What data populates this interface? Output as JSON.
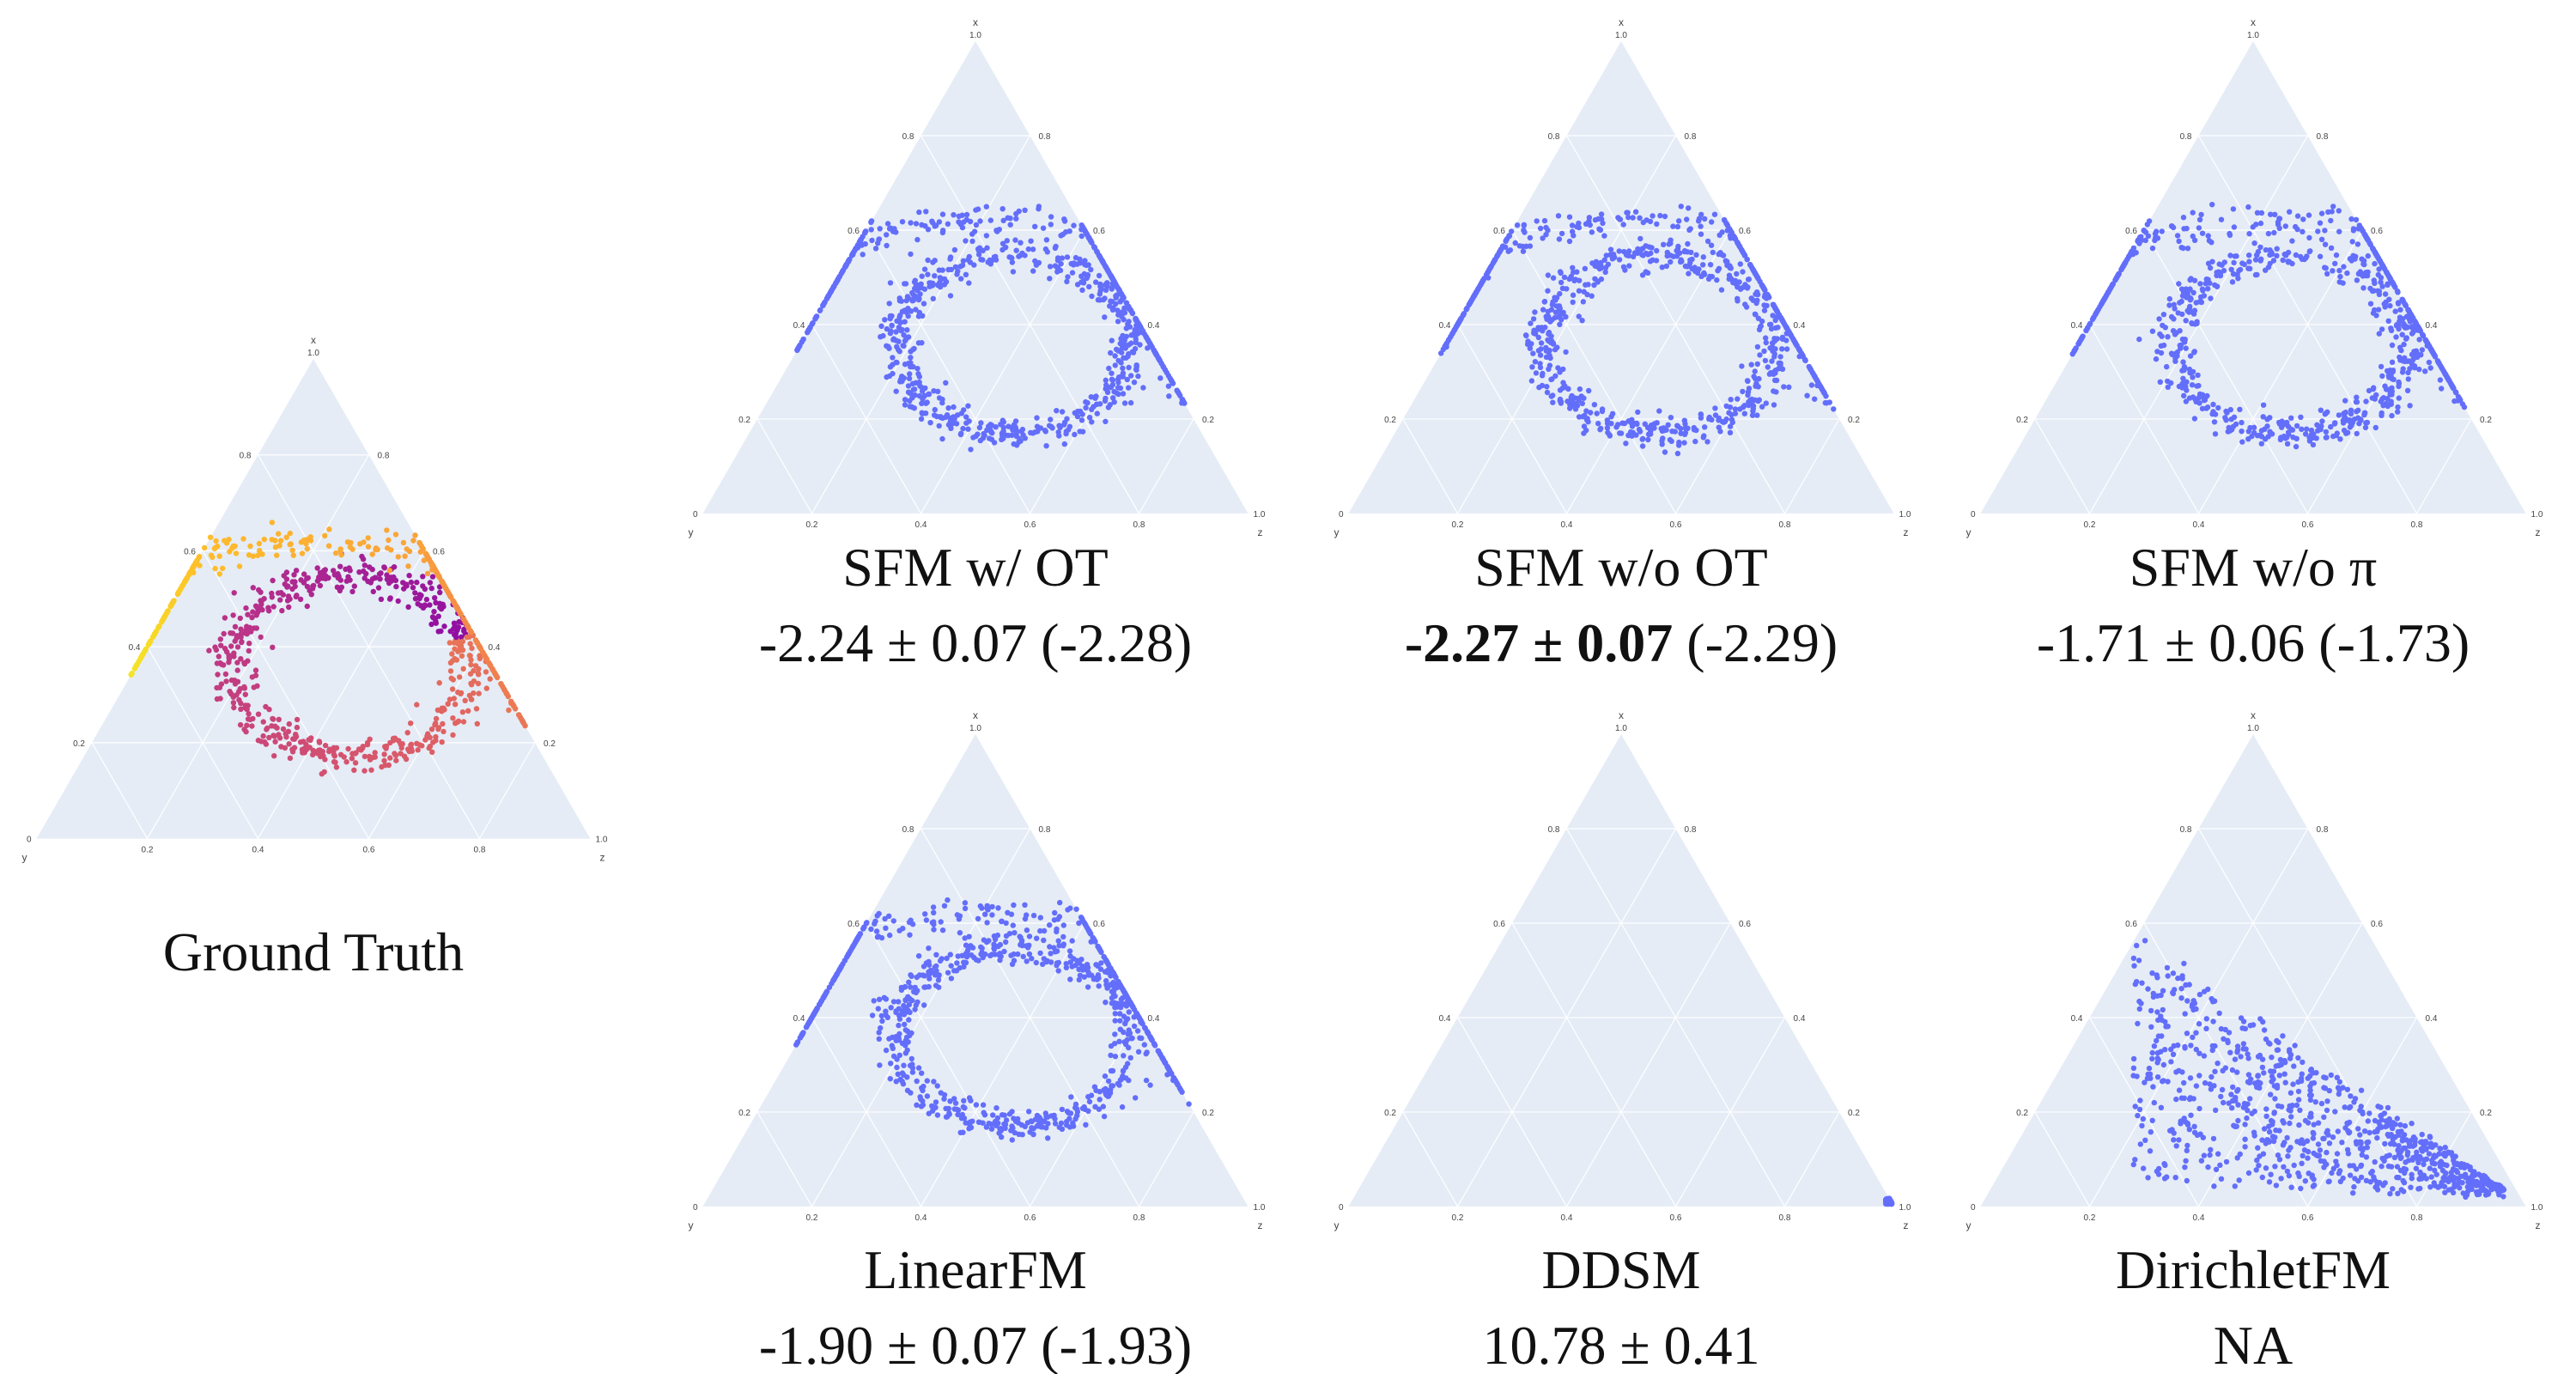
{
  "figure": {
    "axis_names": [
      "x",
      "y",
      "z"
    ],
    "bg_color": "#e5ecf6",
    "grid_color": "#ffffff",
    "marker_color": "#636efa",
    "ticks": [
      "0.2",
      "0.4",
      "0.6",
      "0.8"
    ],
    "axis_end_label": "1.0",
    "axis_zero_label": "0"
  },
  "chart_data": [
    {
      "id": "ground-truth",
      "type": "scatter-ternary",
      "title": "Ground Truth",
      "colorscale": "plasma",
      "points": "ring-plus-arc",
      "metric": null
    },
    {
      "id": "sfm-w-ot",
      "type": "scatter-ternary",
      "title": "SFM w/ OT",
      "points": "ring-plus-arc",
      "metric": {
        "mean": "-2.24",
        "pm": "±",
        "std": "0.07",
        "paren": "(-2.28)",
        "bold": false
      }
    },
    {
      "id": "sfm-wo-ot",
      "type": "scatter-ternary",
      "title": "SFM w/o OT",
      "points": "ring-plus-arc",
      "metric": {
        "mean": "-2.27",
        "pm": "±",
        "std": "0.07",
        "paren": "(-2.29)",
        "bold": true
      }
    },
    {
      "id": "sfm-wo-pi",
      "type": "scatter-ternary",
      "title": "SFM w/o π",
      "points": "ring-plus-arc",
      "metric": {
        "mean": "-1.71",
        "pm": "±",
        "std": "0.06",
        "paren": "(-1.73)",
        "bold": false
      }
    },
    {
      "id": "linearfm",
      "type": "scatter-ternary",
      "title": "LinearFM",
      "points": "ring-plus-arc",
      "metric": {
        "mean": "-1.90",
        "pm": "±",
        "std": "0.07",
        "paren": "(-1.93)",
        "bold": false
      }
    },
    {
      "id": "ddsm",
      "type": "scatter-ternary",
      "title": "DDSM",
      "points": "collapsed-at-z-vertex",
      "metric": {
        "mean": "10.78",
        "pm": "±",
        "std": "0.41",
        "paren": "",
        "bold": false
      }
    },
    {
      "id": "dirichletfm",
      "type": "scatter-ternary",
      "title": "DirichletFM",
      "points": "diffuse-wedge",
      "metric": {
        "text": "NA"
      }
    }
  ]
}
